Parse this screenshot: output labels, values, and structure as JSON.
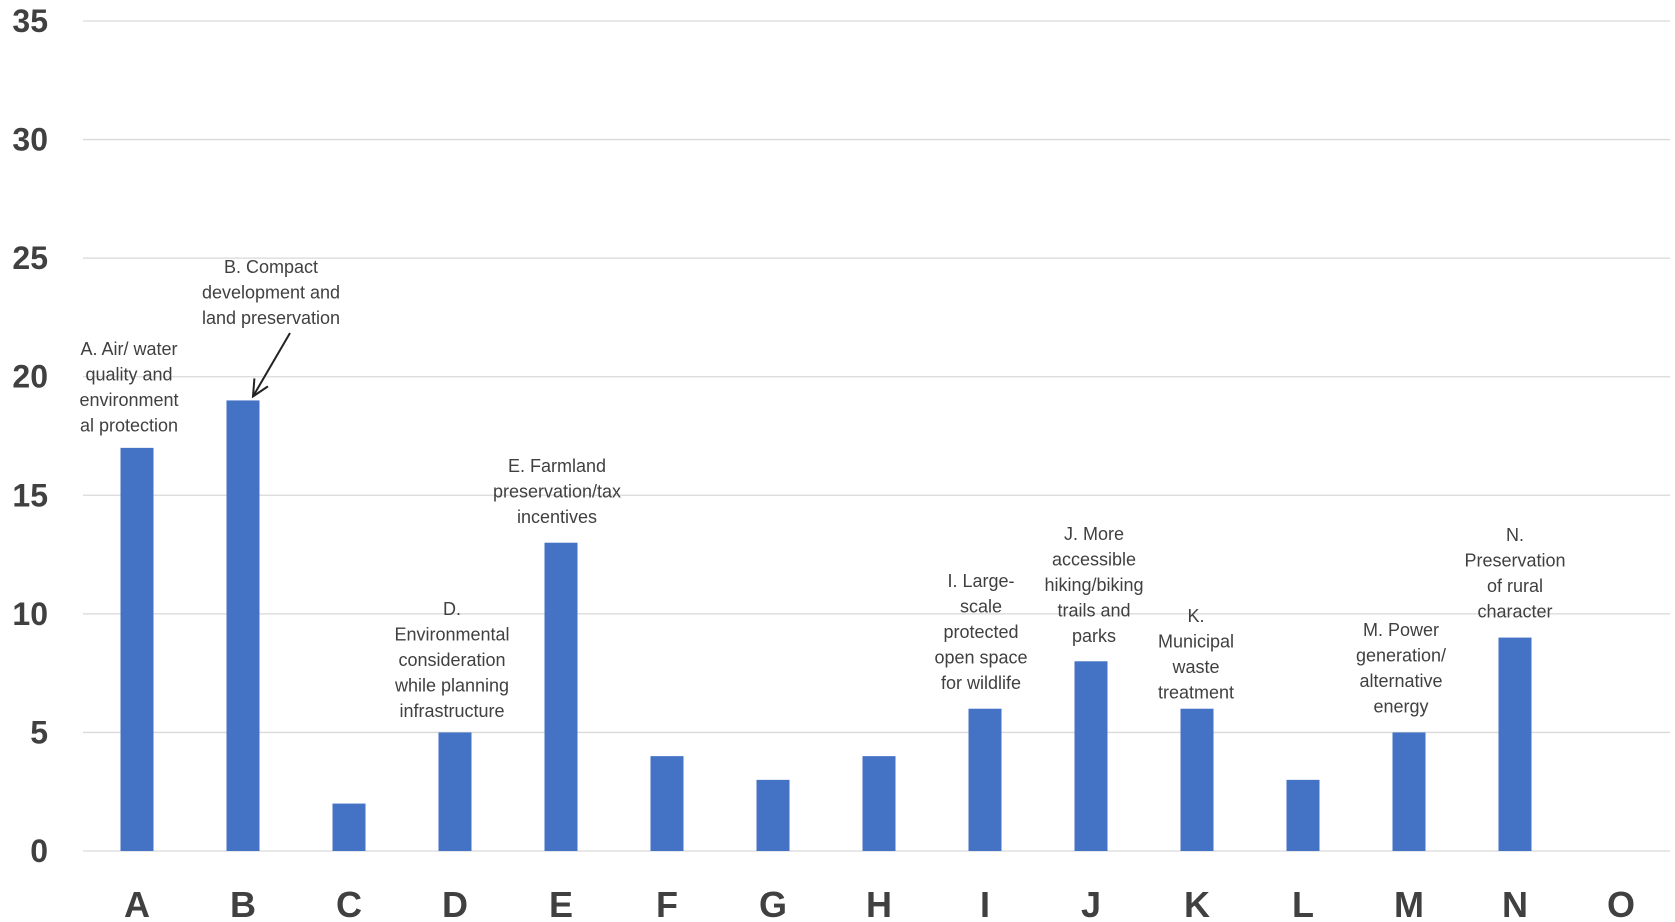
{
  "chart_data": {
    "type": "bar",
    "title": "",
    "xlabel": "",
    "ylabel": "",
    "ylim": [
      0,
      35
    ],
    "yticks": [
      0,
      5,
      10,
      15,
      20,
      25,
      30,
      35
    ],
    "grid": true,
    "legend": "none",
    "bar_color": "#4472c4",
    "categories": [
      "A",
      "B",
      "C",
      "D",
      "E",
      "F",
      "G",
      "H",
      "I",
      "J",
      "K",
      "L",
      "M",
      "N",
      "O"
    ],
    "values": [
      17,
      19,
      2,
      5,
      13,
      4,
      3,
      4,
      6,
      8,
      6,
      3,
      5,
      9,
      0
    ],
    "annotations": [
      {
        "category": "A",
        "lines": [
          "A. Air/ water",
          "quality and",
          "environment",
          "al protection"
        ]
      },
      {
        "category": "B",
        "lines": [
          "B. Compact",
          "development and",
          "land preservation"
        ],
        "arrow": true
      },
      {
        "category": "D",
        "lines": [
          "D.",
          "Environmental",
          "consideration",
          "while planning",
          "infrastructure"
        ]
      },
      {
        "category": "E",
        "lines": [
          "E. Farmland",
          "preservation/tax",
          "incentives"
        ]
      },
      {
        "category": "I",
        "lines": [
          "I. Large-",
          "scale",
          "protected",
          "open space",
          "for wildlife"
        ]
      },
      {
        "category": "J",
        "lines": [
          "J. More",
          "accessible",
          "hiking/biking",
          "trails and",
          "parks"
        ]
      },
      {
        "category": "K",
        "lines": [
          "K.",
          "Municipal",
          "waste",
          "treatment"
        ]
      },
      {
        "category": "M",
        "lines": [
          "M. Power",
          "generation/",
          "alternative",
          "energy"
        ]
      },
      {
        "category": "N",
        "lines": [
          "N.",
          "Preservation",
          "of rural",
          "character"
        ]
      }
    ]
  }
}
